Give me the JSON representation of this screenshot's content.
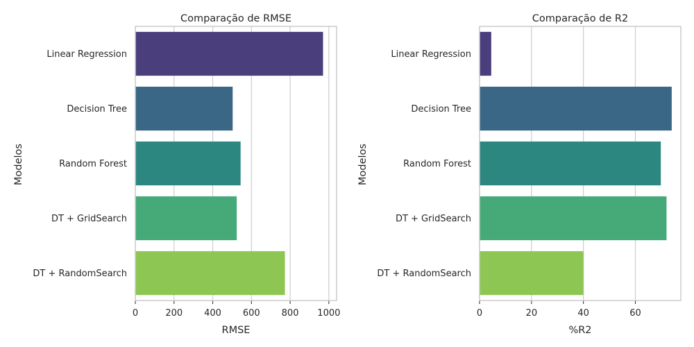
{
  "chart_data": [
    {
      "type": "bar",
      "orientation": "horizontal",
      "title": "Comparação de RMSE",
      "xlabel": "RMSE",
      "ylabel": "Modelos",
      "categories": [
        "Linear Regression",
        "Decision Tree",
        "Random Forest",
        "DT + GridSearch",
        "DT + RandomSearch"
      ],
      "values": [
        970,
        503,
        544,
        524,
        773
      ],
      "xlim": [
        0,
        1040
      ],
      "xticks": [
        0,
        200,
        400,
        600,
        800,
        1000
      ],
      "grid": true,
      "colors": [
        "#4a3f7c",
        "#3b6787",
        "#2c8781",
        "#45a978",
        "#8dc653"
      ]
    },
    {
      "type": "bar",
      "orientation": "horizontal",
      "title": "Comparação de R2",
      "xlabel": "%R2",
      "ylabel": "Modelos",
      "categories": [
        "Linear Regression",
        "Decision Tree",
        "Random Forest",
        "DT + GridSearch",
        "DT + RandomSearch"
      ],
      "values": [
        4.5,
        74,
        69.8,
        72,
        40
      ],
      "xlim": [
        0,
        77.5
      ],
      "xticks": [
        0,
        20,
        40,
        60
      ],
      "grid": true,
      "colors": [
        "#4a3f7c",
        "#3b6787",
        "#2c8781",
        "#45a978",
        "#8dc653"
      ]
    }
  ]
}
